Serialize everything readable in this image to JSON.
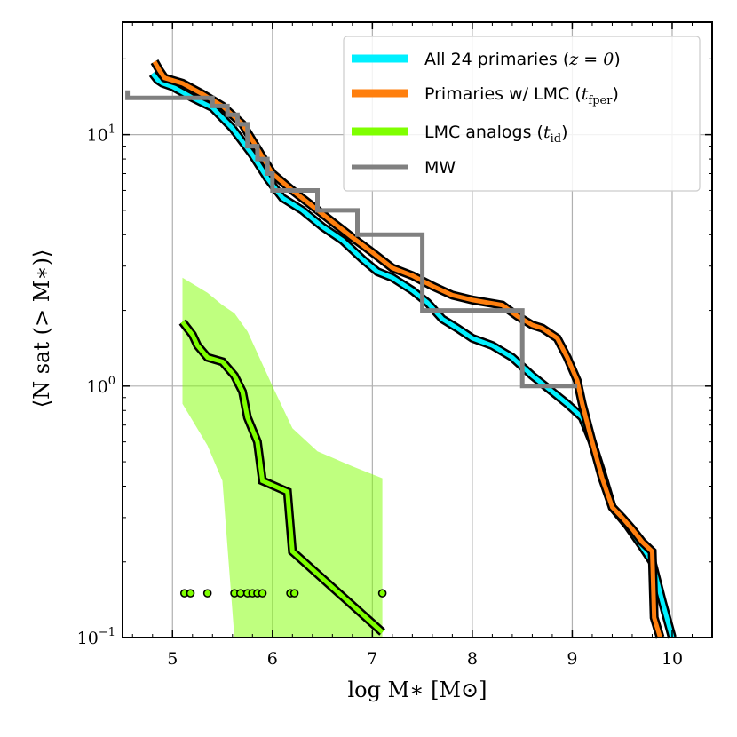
{
  "chart_data": {
    "type": "line",
    "xlabel": "log M∗ [M⊙]",
    "ylabel": "⟨N sat (> M∗)⟩",
    "xlim": [
      4.5,
      10.4
    ],
    "ylim": [
      0.1,
      28
    ],
    "yscale": "log",
    "grid": true,
    "legend_position": "top-right",
    "x_ticks": [
      5,
      6,
      7,
      8,
      9,
      10
    ],
    "x_tick_labels": [
      "5",
      "6",
      "7",
      "8",
      "9",
      "10"
    ],
    "y_ticks": [
      0.1,
      1,
      10
    ],
    "y_tick_labels": [
      {
        "base": "10",
        "exp": "−1"
      },
      {
        "base": "10",
        "exp": "0"
      },
      {
        "base": "10",
        "exp": "1"
      }
    ],
    "series": [
      {
        "name": "All 24 primaries (z = 0)",
        "legend_label": "All 24 primaries (",
        "legend_math": "z = 0",
        "legend_suffix": ")",
        "color": "#00f0ff",
        "x": [
          4.8,
          4.85,
          4.9,
          5.0,
          5.2,
          5.4,
          5.6,
          5.8,
          5.95,
          6.1,
          6.3,
          6.5,
          6.7,
          6.9,
          7.05,
          7.2,
          7.4,
          7.55,
          7.7,
          7.85,
          8.0,
          8.2,
          8.4,
          8.6,
          8.8,
          8.95,
          9.1,
          9.2,
          9.3,
          9.4,
          9.55,
          9.7,
          9.8,
          9.9,
          10.0
        ],
        "y": [
          17.5,
          16.5,
          16.0,
          15.5,
          14.0,
          12.8,
          10.6,
          8.3,
          6.7,
          5.6,
          5.0,
          4.3,
          3.8,
          3.2,
          2.85,
          2.7,
          2.4,
          2.15,
          1.85,
          1.7,
          1.55,
          1.45,
          1.3,
          1.1,
          0.95,
          0.85,
          0.75,
          0.6,
          0.45,
          0.33,
          0.28,
          0.23,
          0.2,
          0.14,
          0.1
        ]
      },
      {
        "name": "Primaries w/ LMC (t_fper)",
        "legend_label": "Primaries w/ LMC (",
        "legend_math": "t",
        "legend_math_sub": "fper",
        "legend_suffix": ")",
        "color": "#ff7f0e",
        "x": [
          4.82,
          4.87,
          4.92,
          5.1,
          5.3,
          5.5,
          5.7,
          5.85,
          6.0,
          6.2,
          6.4,
          6.6,
          6.8,
          7.0,
          7.2,
          7.4,
          7.6,
          7.8,
          8.0,
          8.3,
          8.45,
          8.6,
          8.7,
          8.85,
          8.95,
          9.05,
          9.1,
          9.2,
          9.3,
          9.4,
          9.5,
          9.6,
          9.7,
          9.8,
          9.82,
          9.88
        ],
        "y": [
          19.5,
          18.0,
          16.8,
          16.0,
          14.5,
          13.0,
          11.0,
          8.8,
          7.0,
          6.0,
          5.2,
          4.5,
          3.9,
          3.4,
          2.95,
          2.75,
          2.5,
          2.3,
          2.2,
          2.1,
          1.9,
          1.75,
          1.7,
          1.55,
          1.3,
          1.05,
          0.85,
          0.6,
          0.43,
          0.33,
          0.3,
          0.27,
          0.24,
          0.22,
          0.12,
          0.1
        ]
      },
      {
        "name": "LMC analogs (t_id)",
        "legend_label": "LMC analogs (",
        "legend_math": "t",
        "legend_math_sub": "id",
        "legend_suffix": ")",
        "color": "#7fff00",
        "x": [
          5.1,
          5.2,
          5.25,
          5.35,
          5.5,
          5.62,
          5.7,
          5.75,
          5.85,
          5.9,
          6.15,
          6.2,
          7.1
        ],
        "y": [
          1.8,
          1.6,
          1.45,
          1.3,
          1.25,
          1.1,
          0.95,
          0.75,
          0.6,
          0.42,
          0.38,
          0.22,
          0.105
        ],
        "band": {
          "x": [
            5.1,
            5.35,
            5.5,
            5.62,
            5.75,
            6.0,
            6.2,
            6.45,
            6.8,
            7.1
          ],
          "upper": [
            2.7,
            2.35,
            2.1,
            1.95,
            1.65,
            1.0,
            0.68,
            0.55,
            0.48,
            0.43
          ],
          "lower": [
            0.85,
            0.58,
            0.42,
            0.1,
            0.1,
            0.1,
            0.1,
            0.1,
            0.1,
            0.1
          ]
        },
        "points": {
          "x": [
            5.12,
            5.18,
            5.35,
            5.62,
            5.68,
            5.75,
            5.8,
            5.85,
            5.9,
            6.18,
            6.22,
            7.1
          ],
          "y": [
            0.15,
            0.15,
            0.15,
            0.15,
            0.15,
            0.15,
            0.15,
            0.15,
            0.15,
            0.15,
            0.15,
            0.15
          ]
        }
      },
      {
        "name": "MW",
        "legend_label": "MW",
        "color": "#808080",
        "x": [
          4.55,
          4.55,
          5.4,
          5.4,
          5.55,
          5.55,
          5.65,
          5.65,
          5.75,
          5.75,
          5.85,
          5.85,
          5.95,
          5.95,
          6.0,
          6.0,
          6.45,
          6.45,
          6.85,
          6.85,
          7.5,
          7.5,
          8.5,
          8.5,
          9.05
        ],
        "y": [
          15.0,
          14.0,
          14.0,
          13.0,
          13.0,
          12.0,
          12.0,
          11.0,
          11.0,
          9.0,
          9.0,
          8.0,
          8.0,
          7.0,
          7.0,
          6.0,
          6.0,
          5.0,
          5.0,
          4.0,
          4.0,
          2.0,
          2.0,
          1.0,
          1.0
        ]
      }
    ]
  }
}
